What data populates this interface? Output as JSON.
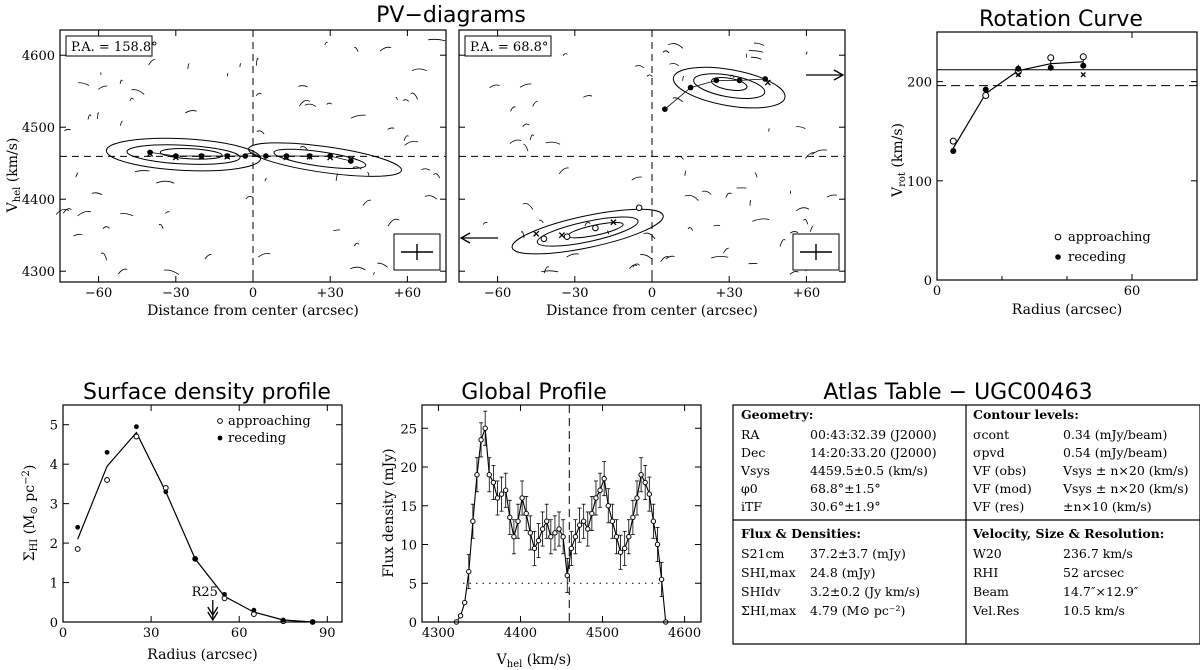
{
  "titles": {
    "pv": "PV−diagrams",
    "rotation": "Rotation Curve",
    "surface": "Surface density profile",
    "global": "Global Profile",
    "atlas": "Atlas Table − UGC00463"
  },
  "chart_data": [
    {
      "type": "scatter",
      "id": "pv1",
      "label": "P.A. = 158.8°",
      "xlabel": "Distance from center (arcsec)",
      "ylabel": "V_hel (km/s)",
      "xlim": [
        -75,
        75
      ],
      "ylim": [
        4285,
        4635
      ],
      "xticks": [
        -60,
        -30,
        0,
        30,
        60
      ],
      "xtick_labels": [
        "−60",
        "−30",
        "0",
        "+30",
        "+60"
      ],
      "yticks": [
        4300,
        4400,
        4500,
        4600
      ],
      "vsys": 4459.5,
      "points_filled": [
        [
          -40,
          4465
        ],
        [
          -30,
          4460
        ],
        [
          -20,
          4460
        ],
        [
          -10,
          4460
        ],
        [
          -3,
          4460
        ],
        [
          5,
          4460
        ],
        [
          13,
          4460
        ],
        [
          22,
          4460
        ],
        [
          30,
          4460
        ],
        [
          38,
          4453
        ]
      ],
      "points_cross": [
        [
          -40,
          4463
        ],
        [
          -30,
          4458
        ],
        [
          -20,
          4459
        ],
        [
          -10,
          4459
        ],
        [
          13,
          4458
        ],
        [
          22,
          4459
        ],
        [
          30,
          4458
        ],
        [
          38,
          4455
        ]
      ]
    },
    {
      "type": "scatter",
      "id": "pv2",
      "label": "P.A. = 68.8°",
      "xlabel": "Distance from center (arcsec)",
      "xlim": [
        -75,
        75
      ],
      "ylim": [
        4285,
        4635
      ],
      "xticks": [
        -60,
        -30,
        0,
        30,
        60
      ],
      "xtick_labels": [
        "−60",
        "−30",
        "0",
        "+30",
        "+60"
      ],
      "vsys": 4459.5,
      "points_open": [
        [
          -42,
          4345
        ],
        [
          -33,
          4348
        ],
        [
          -22,
          4360
        ],
        [
          -5,
          4388
        ]
      ],
      "points_filled": [
        [
          5,
          4525
        ],
        [
          15,
          4555
        ],
        [
          25,
          4565
        ],
        [
          34,
          4565
        ],
        [
          44,
          4567
        ]
      ],
      "points_cross": [
        [
          -45,
          4352
        ],
        [
          -35,
          4350
        ],
        [
          -15,
          4368
        ],
        [
          45,
          4562
        ]
      ]
    },
    {
      "type": "line",
      "id": "rotation",
      "xlabel": "Radius (arcsec)",
      "ylabel": "V_rot (km/s)",
      "xlim": [
        0,
        80
      ],
      "ylim": [
        0,
        250
      ],
      "xticks": [
        0,
        60
      ],
      "yticks": [
        0,
        100,
        200
      ],
      "curve_x": [
        5,
        15,
        25,
        35,
        45
      ],
      "curve_y": [
        133,
        188,
        211,
        218,
        220
      ],
      "approaching": [
        [
          5,
          140
        ],
        [
          15,
          186
        ],
        [
          25,
          210
        ],
        [
          35,
          224
        ],
        [
          45,
          225
        ]
      ],
      "receding": [
        [
          5,
          130
        ],
        [
          15,
          192
        ],
        [
          25,
          213
        ],
        [
          35,
          214
        ],
        [
          45,
          216
        ]
      ],
      "crosses": [
        [
          25,
          207
        ],
        [
          45,
          207
        ]
      ],
      "hline_solid": 212,
      "hline_dashed": 196,
      "legend": [
        "approaching",
        "receding"
      ]
    },
    {
      "type": "line",
      "id": "surface",
      "xlabel": "Radius (arcsec)",
      "ylabel": "Σ_HI (M⊙ pc⁻²)",
      "xlim": [
        0,
        95
      ],
      "ylim": [
        0,
        5.5
      ],
      "xticks": [
        0,
        30,
        60,
        90
      ],
      "yticks": [
        0,
        1,
        2,
        3,
        4,
        5
      ],
      "curve_x": [
        5,
        15,
        25,
        35,
        45,
        55,
        65,
        75,
        85
      ],
      "curve_y": [
        2.1,
        3.95,
        4.8,
        3.3,
        1.6,
        0.65,
        0.25,
        0.05,
        0.0
      ],
      "approaching": [
        [
          5,
          1.85
        ],
        [
          15,
          3.6
        ],
        [
          25,
          4.7
        ],
        [
          35,
          3.4
        ],
        [
          45,
          1.6
        ],
        [
          55,
          0.6
        ],
        [
          65,
          0.2
        ],
        [
          75,
          0.02
        ],
        [
          85,
          0.0
        ]
      ],
      "receding": [
        [
          5,
          2.4
        ],
        [
          15,
          4.3
        ],
        [
          25,
          4.95
        ],
        [
          35,
          3.3
        ],
        [
          45,
          1.6
        ],
        [
          55,
          0.7
        ],
        [
          65,
          0.3
        ],
        [
          75,
          0.05
        ],
        [
          85,
          0.0
        ]
      ],
      "r25_label": "R25",
      "r25_x": 51,
      "legend": [
        "approaching",
        "receding"
      ]
    },
    {
      "type": "line",
      "id": "global",
      "xlabel": "V_hel (km/s)",
      "ylabel": "Flux density (mJy)",
      "xlim": [
        4280,
        4620
      ],
      "ylim": [
        0,
        28
      ],
      "xticks": [
        4300,
        4400,
        4500,
        4600
      ],
      "yticks": [
        0,
        5,
        10,
        15,
        20,
        25
      ],
      "x": [
        4322,
        4327,
        4332,
        4337,
        4342,
        4347,
        4352,
        4357,
        4362,
        4367,
        4372,
        4377,
        4382,
        4387,
        4392,
        4397,
        4402,
        4407,
        4412,
        4417,
        4422,
        4427,
        4432,
        4437,
        4442,
        4447,
        4452,
        4457,
        4462,
        4467,
        4472,
        4477,
        4482,
        4487,
        4492,
        4497,
        4502,
        4507,
        4512,
        4517,
        4522,
        4527,
        4532,
        4537,
        4542,
        4547,
        4552,
        4557,
        4562,
        4567,
        4572,
        4577
      ],
      "y": [
        0,
        0.8,
        2.5,
        6.5,
        13,
        19,
        23.5,
        25,
        19,
        18,
        16,
        16.5,
        17,
        13.5,
        11,
        13,
        16,
        14,
        11.5,
        9.5,
        10.5,
        12,
        13,
        11,
        11.5,
        12,
        11,
        6,
        9.5,
        11,
        12.5,
        13,
        12,
        14,
        16,
        17,
        18.5,
        15,
        13,
        11,
        9,
        9.5,
        11,
        13.5,
        16,
        19,
        18,
        16.5,
        13,
        10,
        5.5,
        0
      ],
      "vsys": 4459.5,
      "dotted_level": 5
    }
  ],
  "atlas": {
    "geometry": {
      "heading": "Geometry:",
      "rows": [
        {
          "k": "RA",
          "v": "00:43:32.39 (J2000)"
        },
        {
          "k": "Dec",
          "v": "14:20:33.20 (J2000)"
        },
        {
          "k": "Vsys",
          "v": "4459.5±0.5 (km/s)"
        },
        {
          "k": "φ0",
          "v": "68.8°±1.5°"
        },
        {
          "k": "iTF",
          "v": "30.6°±1.9°"
        }
      ]
    },
    "contours": {
      "heading": "Contour levels:",
      "rows": [
        {
          "k": "σcont",
          "v": "0.34 (mJy/beam)"
        },
        {
          "k": "σpvd",
          "v": "0.54 (mJy/beam)"
        },
        {
          "k": "VF (obs)",
          "v": "Vsys ± n×20 (km/s)"
        },
        {
          "k": "VF (mod)",
          "v": "Vsys ± n×20 (km/s)"
        },
        {
          "k": "VF (res)",
          "v": "±n×10 (km/s)"
        }
      ]
    },
    "flux": {
      "heading": "Flux & Densities:",
      "rows": [
        {
          "k": "S21cm",
          "v": "37.2±3.7 (mJy)"
        },
        {
          "k": "SHI,max",
          "v": "24.8 (mJy)"
        },
        {
          "k": "SHIdv",
          "v": "3.2±0.2 (Jy km/s)"
        },
        {
          "k": "ΣHI,max",
          "v": "4.79 (M⊙ pc⁻²)"
        }
      ]
    },
    "velocity": {
      "heading": "Velocity, Size & Resolution:",
      "rows": [
        {
          "k": "W20",
          "v": "236.7 km/s"
        },
        {
          "k": "RHI",
          "v": "52 arcsec"
        },
        {
          "k": "Beam",
          "v": "14.7″×12.9″"
        },
        {
          "k": "Vel.Res",
          "v": "10.5 km/s"
        }
      ]
    }
  }
}
